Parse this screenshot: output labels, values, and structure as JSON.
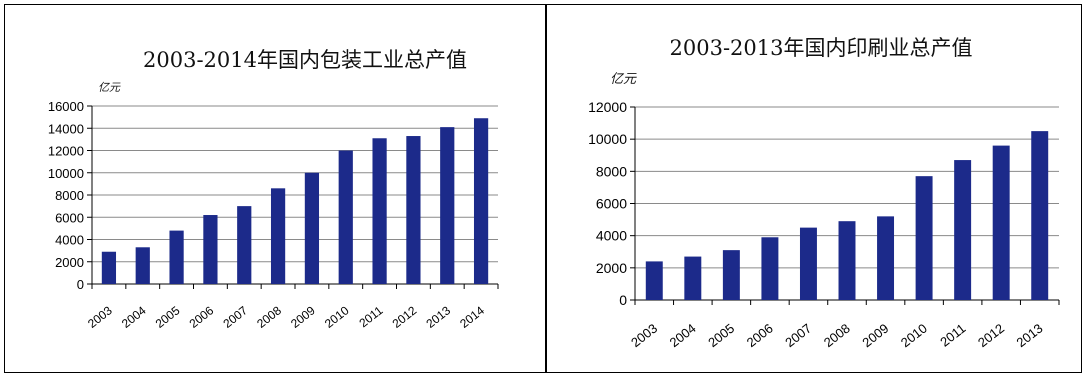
{
  "chart_data": [
    {
      "type": "bar",
      "title": "2003-2014年国内包装工业总产值",
      "ylabel": "亿元",
      "xlabel": "",
      "categories": [
        "2003",
        "2004",
        "2005",
        "2006",
        "2007",
        "2008",
        "2009",
        "2010",
        "2011",
        "2012",
        "2013",
        "2014"
      ],
      "values": [
        2900,
        3300,
        4800,
        6200,
        7000,
        8600,
        10000,
        12000,
        13100,
        13300,
        14100,
        14900
      ],
      "ylim": [
        0,
        16000
      ],
      "yticks": [
        0,
        2000,
        4000,
        6000,
        8000,
        10000,
        12000,
        14000,
        16000
      ],
      "grid": true,
      "bar_color": "#1c2a8a"
    },
    {
      "type": "bar",
      "title": "2003-2013年国内印刷业总产值",
      "ylabel": "亿元",
      "xlabel": "",
      "categories": [
        "2003",
        "2004",
        "2005",
        "2006",
        "2007",
        "2008",
        "2009",
        "2010",
        "2011",
        "2012",
        "2013"
      ],
      "values": [
        2400,
        2700,
        3100,
        3900,
        4500,
        4900,
        5200,
        7700,
        8700,
        9600,
        10500
      ],
      "ylim": [
        0,
        12000
      ],
      "yticks": [
        0,
        2000,
        4000,
        6000,
        8000,
        10000,
        12000
      ],
      "grid": true,
      "bar_color": "#1c2a8a"
    }
  ]
}
